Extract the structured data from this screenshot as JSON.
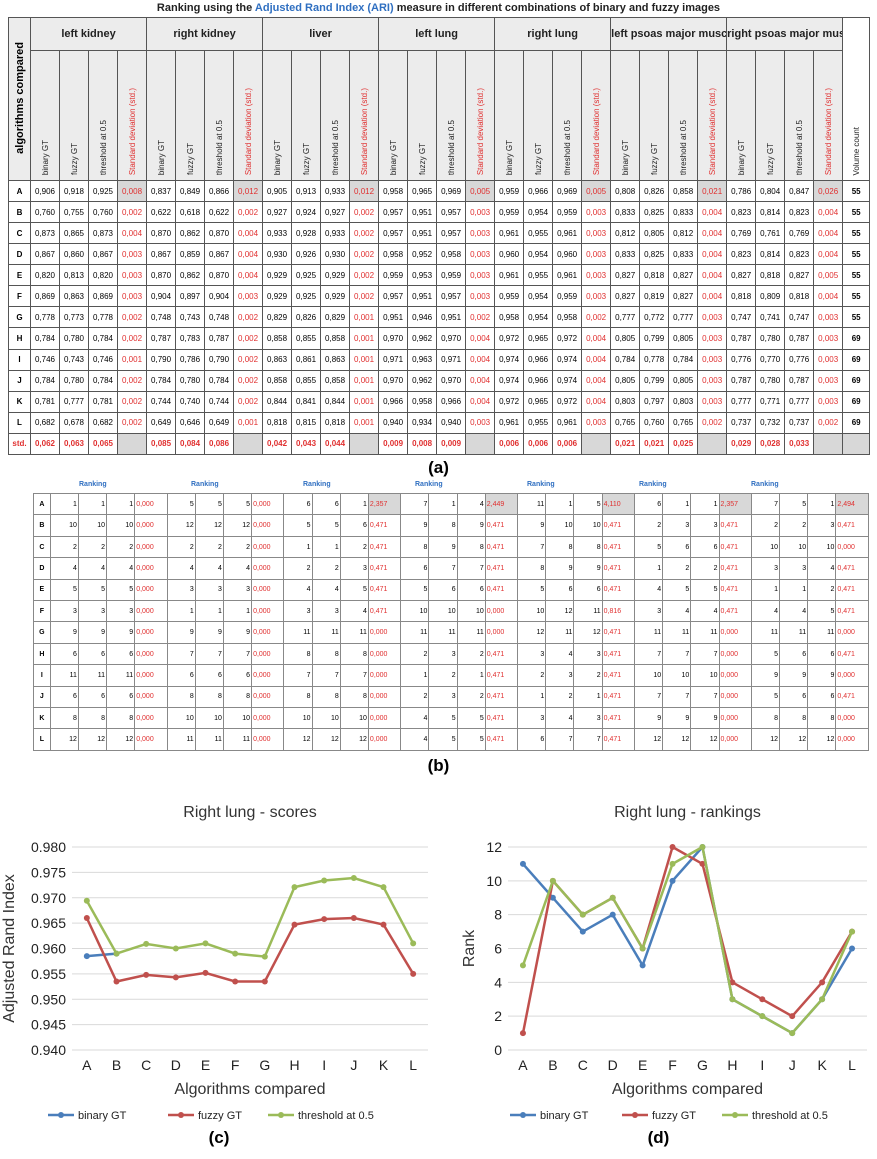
{
  "title_a": {
    "pre": "Ranking using the ",
    "highlight": "Adjusted Rand Index (ARI)",
    "post": " measure in different combinations of binary and fuzzy images"
  },
  "labels": {
    "a": "(a)",
    "b": "(b)",
    "c": "(c)",
    "d": "(d)"
  },
  "table_a": {
    "corner": "algorithms compared",
    "organs": [
      "left kidney",
      "right kidney",
      "liver",
      "left lung",
      "right lung",
      "left psoas major muscle",
      "right psoas major muscle"
    ],
    "subcols": [
      "binary GT",
      "fuzzy GT",
      "threshold at 0.5",
      "Standard deviation (std.)"
    ],
    "volume_header": "Volume count",
    "rows": [
      {
        "label": "A",
        "cells": [
          "0,906",
          "0,918",
          "0,925",
          "0,008",
          "0,837",
          "0,849",
          "0,866",
          "0,012",
          "0,905",
          "0,913",
          "0,933",
          "0,012",
          "0,958",
          "0,965",
          "0,969",
          "0,005",
          "0,959",
          "0,966",
          "0,969",
          "0,005",
          "0,808",
          "0,826",
          "0,858",
          "0,021",
          "0,786",
          "0,804",
          "0,847",
          "0,026"
        ],
        "volume": "55"
      },
      {
        "label": "B",
        "cells": [
          "0,760",
          "0,755",
          "0,760",
          "0,002",
          "0,622",
          "0,618",
          "0,622",
          "0,002",
          "0,927",
          "0,924",
          "0,927",
          "0,002",
          "0,957",
          "0,951",
          "0,957",
          "0,003",
          "0,959",
          "0,954",
          "0,959",
          "0,003",
          "0,833",
          "0,825",
          "0,833",
          "0,004",
          "0,823",
          "0,814",
          "0,823",
          "0,004"
        ],
        "volume": "55"
      },
      {
        "label": "C",
        "cells": [
          "0,873",
          "0,865",
          "0,873",
          "0,004",
          "0,870",
          "0,862",
          "0,870",
          "0,004",
          "0,933",
          "0,928",
          "0,933",
          "0,002",
          "0,957",
          "0,951",
          "0,957",
          "0,003",
          "0,961",
          "0,955",
          "0,961",
          "0,003",
          "0,812",
          "0,805",
          "0,812",
          "0,004",
          "0,769",
          "0,761",
          "0,769",
          "0,004"
        ],
        "volume": "55"
      },
      {
        "label": "D",
        "cells": [
          "0,867",
          "0,860",
          "0,867",
          "0,003",
          "0,867",
          "0,859",
          "0,867",
          "0,004",
          "0,930",
          "0,926",
          "0,930",
          "0,002",
          "0,958",
          "0,952",
          "0,958",
          "0,003",
          "0,960",
          "0,954",
          "0,960",
          "0,003",
          "0,833",
          "0,825",
          "0,833",
          "0,004",
          "0,823",
          "0,814",
          "0,823",
          "0,004"
        ],
        "volume": "55"
      },
      {
        "label": "E",
        "cells": [
          "0,820",
          "0,813",
          "0,820",
          "0,003",
          "0,870",
          "0,862",
          "0,870",
          "0,004",
          "0,929",
          "0,925",
          "0,929",
          "0,002",
          "0,959",
          "0,953",
          "0,959",
          "0,003",
          "0,961",
          "0,955",
          "0,961",
          "0,003",
          "0,827",
          "0,818",
          "0,827",
          "0,004",
          "0,827",
          "0,818",
          "0,827",
          "0,005"
        ],
        "volume": "55"
      },
      {
        "label": "F",
        "cells": [
          "0,869",
          "0,863",
          "0,869",
          "0,003",
          "0,904",
          "0,897",
          "0,904",
          "0,003",
          "0,929",
          "0,925",
          "0,929",
          "0,002",
          "0,957",
          "0,951",
          "0,957",
          "0,003",
          "0,959",
          "0,954",
          "0,959",
          "0,003",
          "0,827",
          "0,819",
          "0,827",
          "0,004",
          "0,818",
          "0,809",
          "0,818",
          "0,004"
        ],
        "volume": "55"
      },
      {
        "label": "G",
        "cells": [
          "0,778",
          "0,773",
          "0,778",
          "0,002",
          "0,748",
          "0,743",
          "0,748",
          "0,002",
          "0,829",
          "0,826",
          "0,829",
          "0,001",
          "0,951",
          "0,946",
          "0,951",
          "0,002",
          "0,958",
          "0,954",
          "0,958",
          "0,002",
          "0,777",
          "0,772",
          "0,777",
          "0,003",
          "0,747",
          "0,741",
          "0,747",
          "0,003"
        ],
        "volume": "55"
      },
      {
        "label": "H",
        "cells": [
          "0,784",
          "0,780",
          "0,784",
          "0,002",
          "0,787",
          "0,783",
          "0,787",
          "0,002",
          "0,858",
          "0,855",
          "0,858",
          "0,001",
          "0,970",
          "0,962",
          "0,970",
          "0,004",
          "0,972",
          "0,965",
          "0,972",
          "0,004",
          "0,805",
          "0,799",
          "0,805",
          "0,003",
          "0,787",
          "0,780",
          "0,787",
          "0,003"
        ],
        "volume": "69"
      },
      {
        "label": "I",
        "cells": [
          "0,746",
          "0,743",
          "0,746",
          "0,001",
          "0,790",
          "0,786",
          "0,790",
          "0,002",
          "0,863",
          "0,861",
          "0,863",
          "0,001",
          "0,971",
          "0,963",
          "0,971",
          "0,004",
          "0,974",
          "0,966",
          "0,974",
          "0,004",
          "0,784",
          "0,778",
          "0,784",
          "0,003",
          "0,776",
          "0,770",
          "0,776",
          "0,003"
        ],
        "volume": "69"
      },
      {
        "label": "J",
        "cells": [
          "0,784",
          "0,780",
          "0,784",
          "0,002",
          "0,784",
          "0,780",
          "0,784",
          "0,002",
          "0,858",
          "0,855",
          "0,858",
          "0,001",
          "0,970",
          "0,962",
          "0,970",
          "0,004",
          "0,974",
          "0,966",
          "0,974",
          "0,004",
          "0,805",
          "0,799",
          "0,805",
          "0,003",
          "0,787",
          "0,780",
          "0,787",
          "0,003"
        ],
        "volume": "69"
      },
      {
        "label": "K",
        "cells": [
          "0,781",
          "0,777",
          "0,781",
          "0,002",
          "0,744",
          "0,740",
          "0,744",
          "0,002",
          "0,844",
          "0,841",
          "0,844",
          "0,001",
          "0,966",
          "0,958",
          "0,966",
          "0,004",
          "0,972",
          "0,965",
          "0,972",
          "0,004",
          "0,803",
          "0,797",
          "0,803",
          "0,003",
          "0,777",
          "0,771",
          "0,777",
          "0,003"
        ],
        "volume": "69"
      },
      {
        "label": "L",
        "cells": [
          "0,682",
          "0,678",
          "0,682",
          "0,002",
          "0,649",
          "0,646",
          "0,649",
          "0,001",
          "0,818",
          "0,815",
          "0,818",
          "0,001",
          "0,940",
          "0,934",
          "0,940",
          "0,003",
          "0,961",
          "0,955",
          "0,961",
          "0,003",
          "0,765",
          "0,760",
          "0,765",
          "0,002",
          "0,737",
          "0,732",
          "0,737",
          "0,002"
        ],
        "volume": "69"
      }
    ],
    "std_label": "std.",
    "std_row": [
      "0,062",
      "0,063",
      "0,065",
      "",
      "0,085",
      "0,084",
      "0,086",
      "",
      "0,042",
      "0,043",
      "0,044",
      "",
      "0,009",
      "0,008",
      "0,009",
      "",
      "0,006",
      "0,006",
      "0,006",
      "",
      "0,021",
      "0,021",
      "0,025",
      "",
      "0,029",
      "0,028",
      "0,033",
      ""
    ]
  },
  "table_b": {
    "group_header": "Ranking",
    "rows": [
      {
        "label": "A",
        "cells": [
          "1",
          "1",
          "1",
          "0,000",
          "5",
          "5",
          "5",
          "0,000",
          "6",
          "6",
          "1",
          "2,357",
          "7",
          "1",
          "4",
          "2,449",
          "11",
          "1",
          "5",
          "4,110",
          "6",
          "1",
          "1",
          "2,357",
          "7",
          "5",
          "1",
          "2,494"
        ]
      },
      {
        "label": "B",
        "cells": [
          "10",
          "10",
          "10",
          "0,000",
          "12",
          "12",
          "12",
          "0,000",
          "5",
          "5",
          "6",
          "0,471",
          "9",
          "8",
          "9",
          "0,471",
          "9",
          "10",
          "10",
          "0,471",
          "2",
          "3",
          "3",
          "0,471",
          "2",
          "2",
          "3",
          "0,471"
        ]
      },
      {
        "label": "C",
        "cells": [
          "2",
          "2",
          "2",
          "0,000",
          "2",
          "2",
          "2",
          "0,000",
          "1",
          "1",
          "2",
          "0,471",
          "8",
          "9",
          "8",
          "0,471",
          "7",
          "8",
          "8",
          "0,471",
          "5",
          "6",
          "6",
          "0,471",
          "10",
          "10",
          "10",
          "0,000"
        ]
      },
      {
        "label": "D",
        "cells": [
          "4",
          "4",
          "4",
          "0,000",
          "4",
          "4",
          "4",
          "0,000",
          "2",
          "2",
          "3",
          "0,471",
          "6",
          "7",
          "7",
          "0,471",
          "8",
          "9",
          "9",
          "0,471",
          "1",
          "2",
          "2",
          "0,471",
          "3",
          "3",
          "4",
          "0,471"
        ]
      },
      {
        "label": "E",
        "cells": [
          "5",
          "5",
          "5",
          "0,000",
          "3",
          "3",
          "3",
          "0,000",
          "4",
          "4",
          "5",
          "0,471",
          "5",
          "6",
          "6",
          "0,471",
          "5",
          "6",
          "6",
          "0,471",
          "4",
          "5",
          "5",
          "0,471",
          "1",
          "1",
          "2",
          "0,471"
        ]
      },
      {
        "label": "F",
        "cells": [
          "3",
          "3",
          "3",
          "0,000",
          "1",
          "1",
          "1",
          "0,000",
          "3",
          "3",
          "4",
          "0,471",
          "10",
          "10",
          "10",
          "0,000",
          "10",
          "12",
          "11",
          "0,816",
          "3",
          "4",
          "4",
          "0,471",
          "4",
          "4",
          "5",
          "0,471"
        ]
      },
      {
        "label": "G",
        "cells": [
          "9",
          "9",
          "9",
          "0,000",
          "9",
          "9",
          "9",
          "0,000",
          "11",
          "11",
          "11",
          "0,000",
          "11",
          "11",
          "11",
          "0,000",
          "12",
          "11",
          "12",
          "0,471",
          "11",
          "11",
          "11",
          "0,000",
          "11",
          "11",
          "11",
          "0,000"
        ]
      },
      {
        "label": "H",
        "cells": [
          "6",
          "6",
          "6",
          "0,000",
          "7",
          "7",
          "7",
          "0,000",
          "8",
          "8",
          "8",
          "0,000",
          "2",
          "3",
          "2",
          "0,471",
          "3",
          "4",
          "3",
          "0,471",
          "7",
          "7",
          "7",
          "0,000",
          "5",
          "6",
          "6",
          "0,471"
        ]
      },
      {
        "label": "I",
        "cells": [
          "11",
          "11",
          "11",
          "0,000",
          "6",
          "6",
          "6",
          "0,000",
          "7",
          "7",
          "7",
          "0,000",
          "1",
          "2",
          "1",
          "0,471",
          "2",
          "3",
          "2",
          "0,471",
          "10",
          "10",
          "10",
          "0,000",
          "9",
          "9",
          "9",
          "0,000"
        ]
      },
      {
        "label": "J",
        "cells": [
          "6",
          "6",
          "6",
          "0,000",
          "8",
          "8",
          "8",
          "0,000",
          "8",
          "8",
          "8",
          "0,000",
          "2",
          "3",
          "2",
          "0,471",
          "1",
          "2",
          "1",
          "0,471",
          "7",
          "7",
          "7",
          "0,000",
          "5",
          "6",
          "6",
          "0,471"
        ]
      },
      {
        "label": "K",
        "cells": [
          "8",
          "8",
          "8",
          "0,000",
          "10",
          "10",
          "10",
          "0,000",
          "10",
          "10",
          "10",
          "0,000",
          "4",
          "5",
          "5",
          "0,471",
          "3",
          "4",
          "3",
          "0,471",
          "9",
          "9",
          "9",
          "0,000",
          "8",
          "8",
          "8",
          "0,000"
        ]
      },
      {
        "label": "L",
        "cells": [
          "12",
          "12",
          "12",
          "0,000",
          "11",
          "11",
          "11",
          "0,000",
          "12",
          "12",
          "12",
          "0,000",
          "4",
          "5",
          "5",
          "0,471",
          "6",
          "7",
          "7",
          "0,471",
          "12",
          "12",
          "12",
          "0,000",
          "12",
          "12",
          "12",
          "0,000"
        ]
      }
    ]
  },
  "chart_data": [
    {
      "type": "line",
      "title": "Right lung - scores",
      "xlabel": "Algorithms compared",
      "ylabel": "Adjusted Rand Index",
      "categories": [
        "A",
        "B",
        "C",
        "D",
        "E",
        "F",
        "G",
        "H",
        "I",
        "J",
        "K",
        "L"
      ],
      "ylim": [
        0.94,
        0.98
      ],
      "yticks": [
        "0.940",
        "0.945",
        "0.950",
        "0.955",
        "0.960",
        "0.965",
        "0.970",
        "0.975",
        "0.980"
      ],
      "grid": true,
      "legend": "bottom",
      "series": [
        {
          "name": "binary GT",
          "color": "#4a7ebb",
          "values": [
            0.9585,
            0.959,
            null,
            null,
            null,
            null,
            null,
            null,
            null,
            null,
            null,
            null
          ]
        },
        {
          "name": "fuzzy GT",
          "color": "#c0504d",
          "values": [
            0.966,
            0.9535,
            0.9548,
            0.9543,
            0.9552,
            0.9535,
            0.9535,
            0.9647,
            0.9658,
            0.966,
            0.9647,
            0.955
          ]
        },
        {
          "name": "threshold at 0.5",
          "color": "#9bbb59",
          "values": [
            0.9694,
            0.959,
            0.9609,
            0.96,
            0.961,
            0.959,
            0.9584,
            0.9721,
            0.9734,
            0.9739,
            0.9721,
            0.961
          ]
        }
      ]
    },
    {
      "type": "line",
      "title": "Right lung - rankings",
      "xlabel": "Algorithms compared",
      "ylabel": "Rank",
      "categories": [
        "A",
        "B",
        "C",
        "D",
        "E",
        "F",
        "G",
        "H",
        "I",
        "J",
        "K",
        "L"
      ],
      "ylim": [
        0,
        12
      ],
      "yticks": [
        "0",
        "2",
        "4",
        "6",
        "8",
        "10",
        "12"
      ],
      "grid": true,
      "legend": "bottom",
      "series": [
        {
          "name": "binary GT",
          "color": "#4a7ebb",
          "values": [
            11,
            9,
            7,
            8,
            5,
            10,
            12,
            3,
            2,
            1,
            3,
            6
          ]
        },
        {
          "name": "fuzzy GT",
          "color": "#c0504d",
          "values": [
            1,
            10,
            8,
            9,
            6,
            12,
            11,
            4,
            3,
            2,
            4,
            7
          ]
        },
        {
          "name": "threshold at 0.5",
          "color": "#9bbb59",
          "values": [
            5,
            10,
            8,
            9,
            6,
            11,
            12,
            3,
            2,
            1,
            3,
            7
          ]
        }
      ]
    }
  ]
}
